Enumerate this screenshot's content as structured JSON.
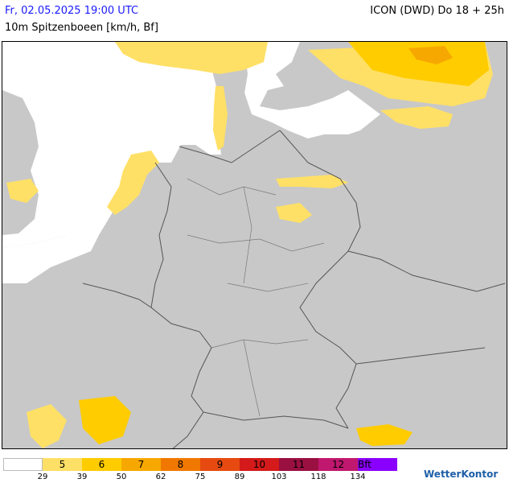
{
  "header": {
    "date_time": "Fr, 02.05.2025 19:00 UTC",
    "model_run": "ICON (DWD) Do 18 + 25h",
    "parameter": "10m Spitzenboeen [km/h, Bf]"
  },
  "legend": {
    "swatches": [
      {
        "label": "",
        "color": "#ffffff"
      },
      {
        "label": "5",
        "color": "#ffe066"
      },
      {
        "label": "6",
        "color": "#ffcc00"
      },
      {
        "label": "7",
        "color": "#f7a800"
      },
      {
        "label": "8",
        "color": "#f07800"
      },
      {
        "label": "9",
        "color": "#e64a10"
      },
      {
        "label": "10",
        "color": "#d41a1a"
      },
      {
        "label": "11",
        "color": "#9a1040"
      },
      {
        "label": "12",
        "color": "#c0186e"
      },
      {
        "label": "Bft",
        "color": "#8a00ff"
      }
    ],
    "ticks": [
      "29",
      "39",
      "50",
      "62",
      "75",
      "89",
      "103",
      "118",
      "134"
    ]
  },
  "branding": {
    "logo_text": "WetterKontor"
  },
  "colors": {
    "land": "#c8c8c8",
    "sea": "#ffffff",
    "border": "#555555"
  }
}
